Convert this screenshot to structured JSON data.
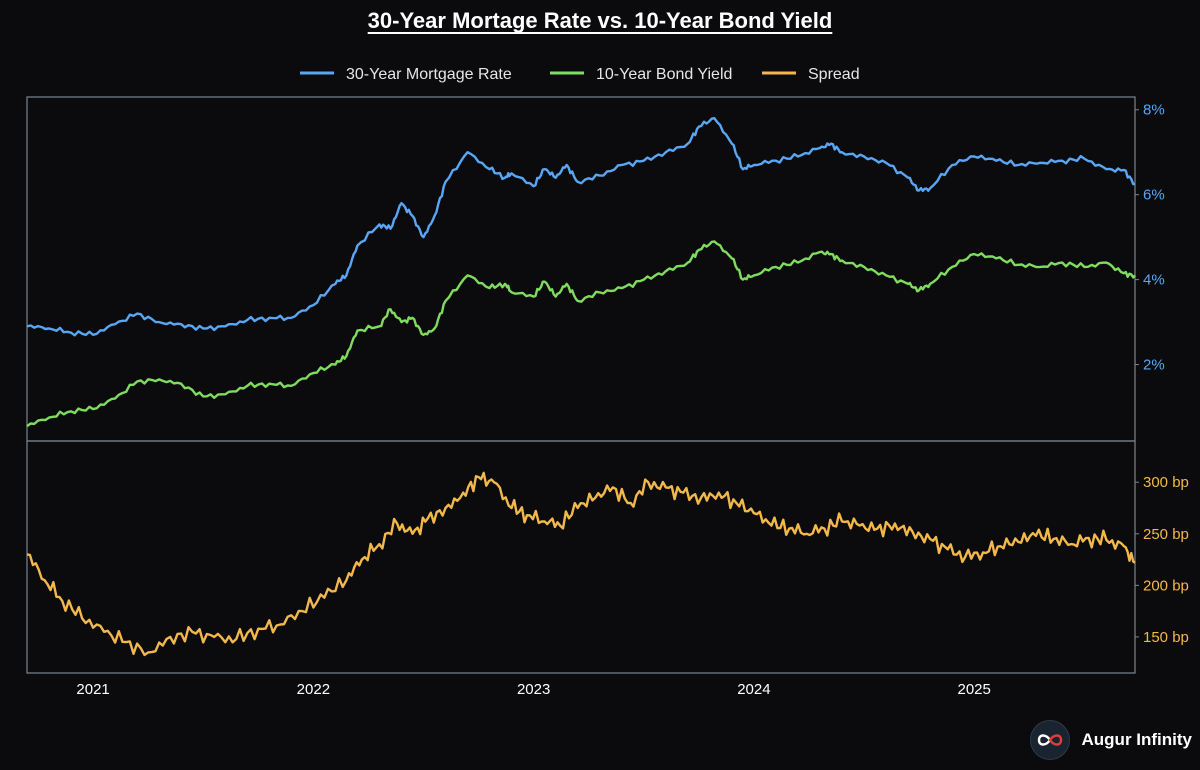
{
  "title": "30-Year Mortage Rate vs. 10-Year Bond Yield",
  "brand": {
    "name": "Augur Infinity"
  },
  "colors": {
    "mortgage": "#58a6f4",
    "bond": "#7fdc5f",
    "spread": "#f2b84b",
    "frame": "#7a8590",
    "background": "#0b0b0d"
  },
  "chart_data": {
    "type": "line",
    "x_tick_labels": [
      "2021",
      "2022",
      "2023",
      "2024",
      "2025"
    ],
    "x_tick_values": [
      2021.0,
      2022.0,
      2023.0,
      2024.0,
      2025.0
    ],
    "x_range": [
      2020.7,
      2025.73
    ],
    "legend": {
      "placement": "top-center",
      "entries": [
        "30-Year Mortgage Rate",
        "10-Year Bond Yield",
        "Spread"
      ]
    },
    "grid": false,
    "panels": [
      {
        "name": "rates",
        "y_axis_side": "right",
        "ylim": [
          0.2,
          8.3
        ],
        "y_tick_values": [
          2,
          4,
          6,
          8
        ],
        "y_tick_labels": [
          "2%",
          "4%",
          "6%",
          "8%"
        ],
        "series": [
          {
            "name": "30-Year Mortgage Rate",
            "color_key": "mortgage",
            "x": [
              2020.7,
              2020.8,
              2020.9,
              2021.0,
              2021.1,
              2021.2,
              2021.3,
              2021.4,
              2021.5,
              2021.6,
              2021.7,
              2021.8,
              2021.9,
              2022.0,
              2022.1,
              2022.15,
              2022.2,
              2022.3,
              2022.35,
              2022.4,
              2022.45,
              2022.5,
              2022.55,
              2022.6,
              2022.7,
              2022.8,
              2022.87,
              2022.9,
              2023.0,
              2023.05,
              2023.1,
              2023.15,
              2023.2,
              2023.3,
              2023.4,
              2023.5,
              2023.6,
              2023.7,
              2023.75,
              2023.82,
              2023.9,
              2023.95,
              2024.0,
              2024.1,
              2024.2,
              2024.3,
              2024.35,
              2024.4,
              2024.5,
              2024.6,
              2024.7,
              2024.75,
              2024.8,
              2024.9,
              2025.0,
              2025.1,
              2025.2,
              2025.3,
              2025.4,
              2025.5,
              2025.6,
              2025.68,
              2025.73
            ],
            "y": [
              2.9,
              2.85,
              2.75,
              2.7,
              2.95,
              3.2,
              3.0,
              2.95,
              2.85,
              2.9,
              3.05,
              3.1,
              3.1,
              3.4,
              3.9,
              4.1,
              4.8,
              5.3,
              5.2,
              5.8,
              5.5,
              5.0,
              5.5,
              6.3,
              7.0,
              6.6,
              6.4,
              6.5,
              6.2,
              6.6,
              6.4,
              6.7,
              6.3,
              6.45,
              6.7,
              6.8,
              7.0,
              7.2,
              7.6,
              7.8,
              7.2,
              6.6,
              6.7,
              6.8,
              6.9,
              7.1,
              7.2,
              7.0,
              6.9,
              6.75,
              6.4,
              6.1,
              6.15,
              6.7,
              6.9,
              6.8,
              6.7,
              6.75,
              6.8,
              6.85,
              6.6,
              6.58,
              6.25
            ]
          },
          {
            "name": "10-Year Bond Yield",
            "color_key": "bond",
            "x": [
              2020.7,
              2020.8,
              2020.9,
              2021.0,
              2021.1,
              2021.2,
              2021.3,
              2021.4,
              2021.5,
              2021.6,
              2021.7,
              2021.8,
              2021.9,
              2022.0,
              2022.1,
              2022.15,
              2022.2,
              2022.3,
              2022.35,
              2022.4,
              2022.45,
              2022.5,
              2022.55,
              2022.6,
              2022.7,
              2022.8,
              2022.87,
              2022.9,
              2023.0,
              2023.05,
              2023.1,
              2023.15,
              2023.2,
              2023.3,
              2023.4,
              2023.5,
              2023.6,
              2023.7,
              2023.75,
              2023.82,
              2023.9,
              2023.95,
              2024.0,
              2024.1,
              2024.2,
              2024.3,
              2024.35,
              2024.4,
              2024.5,
              2024.6,
              2024.7,
              2024.75,
              2024.8,
              2024.9,
              2025.0,
              2025.1,
              2025.2,
              2025.3,
              2025.4,
              2025.5,
              2025.6,
              2025.68,
              2025.73
            ],
            "y": [
              0.55,
              0.75,
              0.9,
              0.95,
              1.2,
              1.6,
              1.65,
              1.55,
              1.25,
              1.3,
              1.5,
              1.55,
              1.5,
              1.8,
              2.0,
              2.2,
              2.8,
              2.9,
              3.3,
              3.0,
              3.1,
              2.7,
              2.85,
              3.5,
              4.1,
              3.8,
              3.9,
              3.7,
              3.6,
              3.95,
              3.6,
              3.9,
              3.5,
              3.7,
              3.8,
              4.0,
              4.2,
              4.4,
              4.7,
              4.9,
              4.5,
              4.0,
              4.1,
              4.3,
              4.4,
              4.65,
              4.6,
              4.45,
              4.3,
              4.1,
              3.9,
              3.75,
              3.9,
              4.3,
              4.6,
              4.5,
              4.35,
              4.3,
              4.4,
              4.3,
              4.4,
              4.15,
              4.1
            ]
          }
        ]
      },
      {
        "name": "spread",
        "y_axis_side": "right",
        "ylim": [
          115,
          340
        ],
        "y_tick_values": [
          150,
          200,
          250,
          300
        ],
        "y_tick_labels": [
          "150 bp",
          "200 bp",
          "250 bp",
          "300 bp"
        ],
        "series": [
          {
            "name": "Spread",
            "color_key": "spread",
            "x": [
              2020.7,
              2020.78,
              2020.86,
              2020.95,
              2021.05,
              2021.15,
              2021.25,
              2021.35,
              2021.45,
              2021.55,
              2021.65,
              2021.75,
              2021.85,
              2021.95,
              2022.05,
              2022.15,
              2022.22,
              2022.3,
              2022.38,
              2022.45,
              2022.52,
              2022.6,
              2022.68,
              2022.75,
              2022.82,
              2022.9,
              2022.97,
              2023.05,
              2023.12,
              2023.2,
              2023.28,
              2023.36,
              2023.44,
              2023.52,
              2023.6,
              2023.68,
              2023.76,
              2023.84,
              2023.92,
              2024.0,
              2024.08,
              2024.16,
              2024.24,
              2024.32,
              2024.4,
              2024.48,
              2024.56,
              2024.64,
              2024.72,
              2024.8,
              2024.88,
              2024.96,
              2025.04,
              2025.12,
              2025.2,
              2025.28,
              2025.36,
              2025.44,
              2025.52,
              2025.6,
              2025.68,
              2025.73
            ],
            "y": [
              230,
              205,
              185,
              168,
              155,
              145,
              135,
              150,
              155,
              150,
              148,
              158,
              162,
              175,
              188,
              205,
              225,
              240,
              260,
              250,
              265,
              275,
              290,
              305,
              300,
              275,
              268,
              262,
              258,
              275,
              285,
              295,
              280,
              300,
              295,
              290,
              285,
              290,
              280,
              270,
              258,
              255,
              250,
              255,
              262,
              258,
              255,
              260,
              252,
              245,
              235,
              228,
              232,
              238,
              242,
              248,
              245,
              240,
              246,
              244,
              238,
              222
            ]
          }
        ]
      }
    ]
  }
}
